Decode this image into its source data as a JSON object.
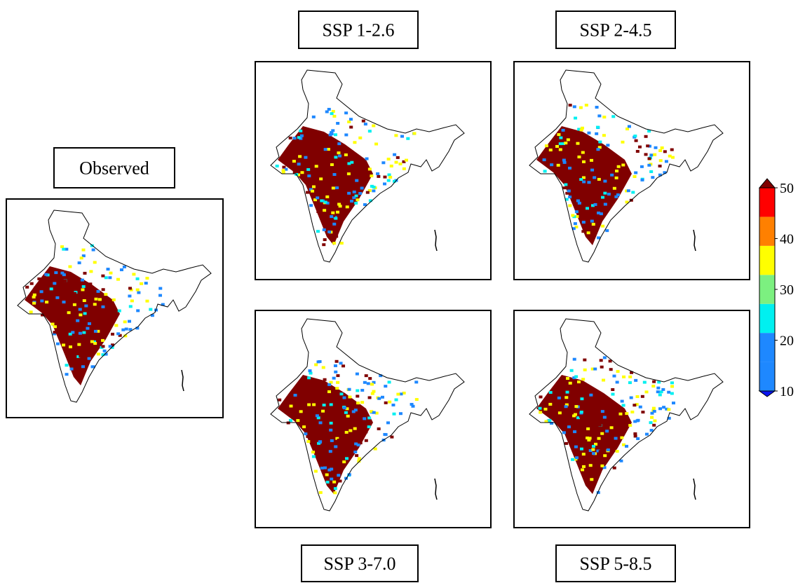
{
  "panels": [
    {
      "label": "Observed"
    },
    {
      "label": "SSP 1-2.6"
    },
    {
      "label": "SSP 2-4.5"
    },
    {
      "label": "SSP 3-7.0"
    },
    {
      "label": "SSP 5-8.5"
    }
  ],
  "colorbar": {
    "ticks": [
      10,
      20,
      30,
      40,
      50
    ],
    "colors": [
      "#0a14f0",
      "#1e88ff",
      "#1e88ff",
      "#00f0f0",
      "#7cf080",
      "#ffff00",
      "#ff8000",
      "#ff0000",
      "#800000"
    ]
  }
}
